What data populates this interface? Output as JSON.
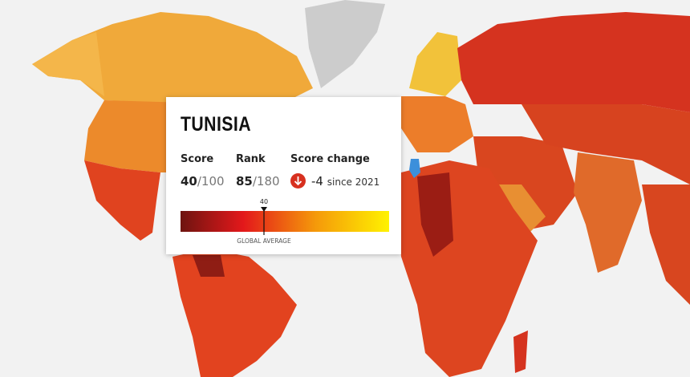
{
  "tooltip": {
    "country": "TUNISIA",
    "score": {
      "label": "Score",
      "value": 40,
      "max": {
        "value": 100,
        "label": "/100"
      }
    },
    "rank": {
      "label": "Rank",
      "value": 85,
      "total": "/180"
    },
    "change": {
      "label": "Score change",
      "value": -4,
      "since": "since 2021"
    },
    "gauge": {
      "marker": 40,
      "caption": "GLOBAL AVERAGE"
    }
  }
}
